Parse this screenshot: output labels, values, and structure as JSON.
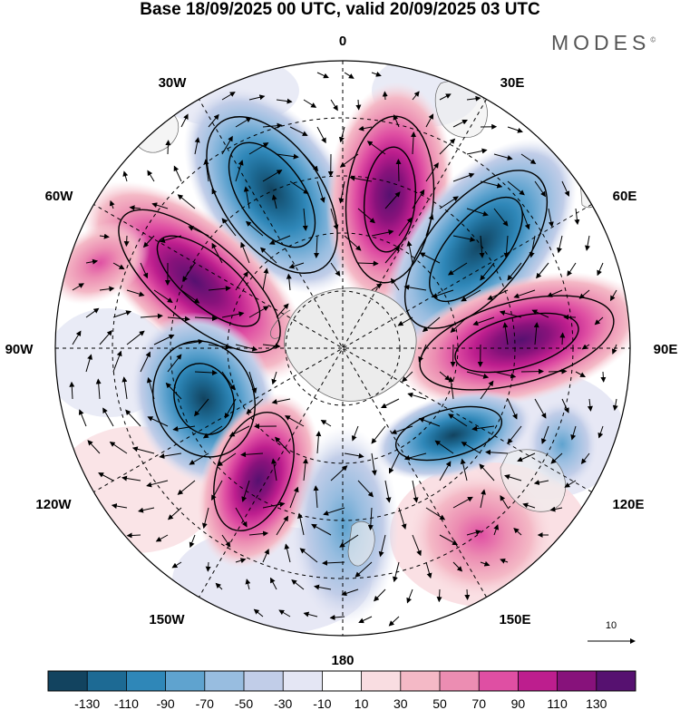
{
  "title": "Base 18/09/2025 00 UTC, valid 20/09/2025 03 UTC",
  "brand": {
    "name": "MODES",
    "mark": "©"
  },
  "map": {
    "projection": "south-polar-stereographic",
    "longitude_labels": {
      "lon_0": "0",
      "lon_30e": "30E",
      "lon_60e": "60E",
      "lon_90e": "90E",
      "lon_120e": "120E",
      "lon_150e": "150E",
      "lon_180": "180",
      "lon_150w": "150W",
      "lon_120w": "120W",
      "lon_90w": "90W",
      "lon_60w": "60W",
      "lon_30w": "30W"
    },
    "anomaly_centers": [
      {
        "lon": 10,
        "sign": "positive"
      },
      {
        "lon": -25,
        "sign": "negative"
      },
      {
        "lon": -60,
        "sign": "positive"
      },
      {
        "lon": 45,
        "sign": "negative"
      },
      {
        "lon": 90,
        "sign": "positive"
      },
      {
        "lon": -105,
        "sign": "negative"
      },
      {
        "lon": 110,
        "sign": "negative"
      },
      {
        "lon": -150,
        "sign": "positive"
      },
      {
        "lon": 180,
        "sign": "negative"
      },
      {
        "lon": 145,
        "sign": "positive"
      }
    ]
  },
  "reference_vector": {
    "label": "10"
  },
  "colorbar": {
    "ticks": [
      "-130",
      "-110",
      "-90",
      "-70",
      "-50",
      "-30",
      "-10",
      "10",
      "30",
      "50",
      "70",
      "90",
      "110",
      "130"
    ],
    "colors": [
      "#12435f",
      "#1d6a94",
      "#2f87b8",
      "#5fa3cf",
      "#98bde0",
      "#c1cde8",
      "#e4e6f4",
      "#ffffff",
      "#f9dde1",
      "#f4b9c6",
      "#ec8db2",
      "#df4fa3",
      "#bd1e8e",
      "#87127b",
      "#561170"
    ]
  }
}
